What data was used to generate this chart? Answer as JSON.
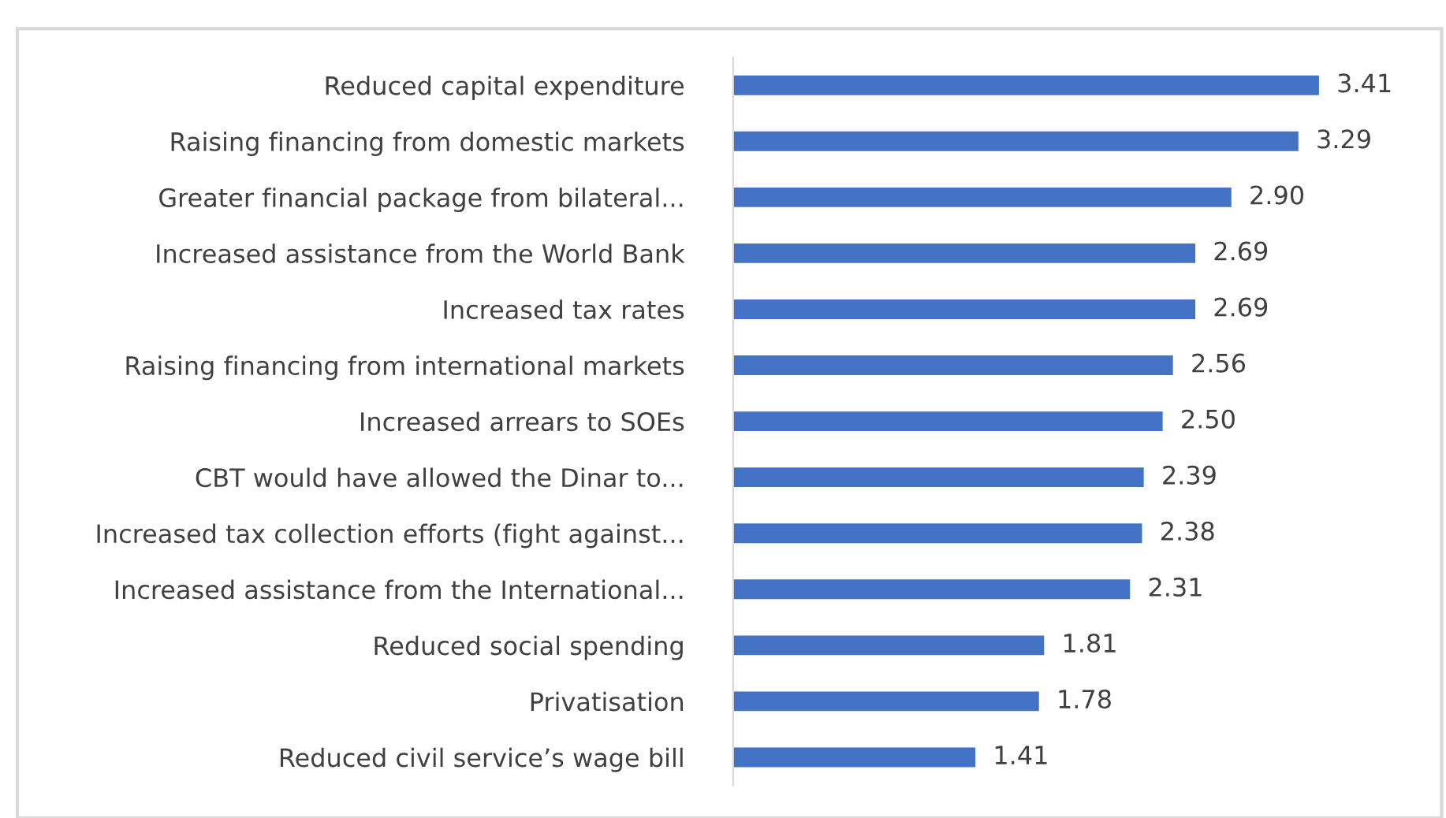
{
  "chart_data": {
    "type": "bar",
    "orientation": "horizontal",
    "categories": [
      "Reduced capital expenditure",
      "Raising financing from domestic markets",
      "Greater financial package from bilateral...",
      "Increased assistance from the World Bank",
      "Increased tax rates",
      "Raising financing from international markets",
      "Increased arrears to SOEs",
      "CBT would have allowed the Dinar to...",
      "Increased tax collection efforts (fight against...",
      "Increased assistance from the International...",
      "Reduced social spending",
      "Privatisation",
      "Reduced civil service’s wage bill"
    ],
    "values": [
      3.41,
      3.29,
      2.9,
      2.69,
      2.69,
      2.56,
      2.5,
      2.39,
      2.38,
      2.31,
      1.81,
      1.78,
      1.41
    ],
    "value_labels": [
      "3.41",
      "3.29",
      "2.90",
      "2.69",
      "2.69",
      "2.56",
      "2.50",
      "2.39",
      "2.38",
      "2.31",
      "1.81",
      "1.78",
      "1.41"
    ],
    "color": "#4472c4",
    "grid": false,
    "legend": false
  }
}
